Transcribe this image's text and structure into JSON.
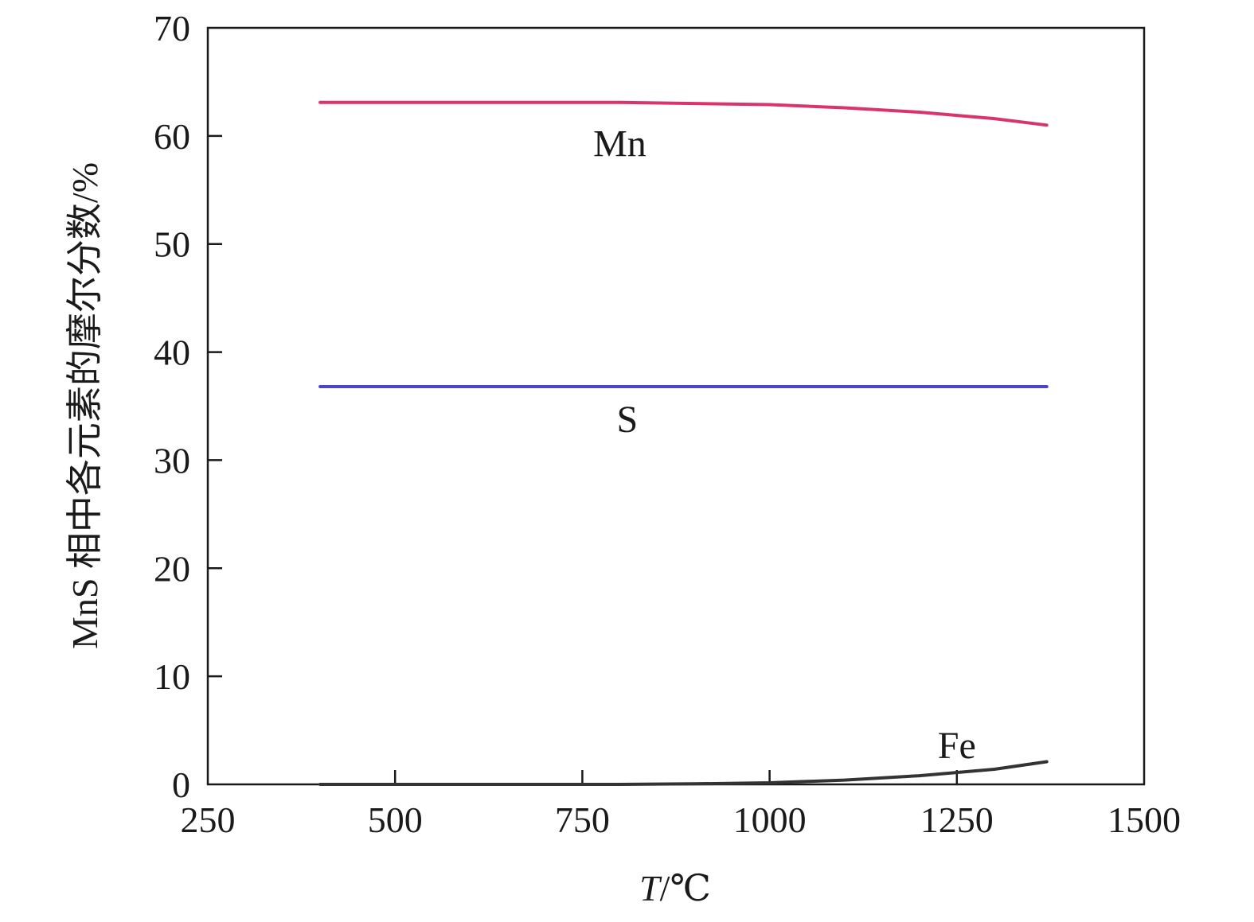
{
  "chart_data": {
    "type": "line",
    "title": "",
    "xlabel": "T/℃",
    "xlabel_var": "T",
    "xlabel_unit": "/℃",
    "ylabel": "MnS 相中各元素的摩尔分数/%",
    "xlim": [
      250,
      1500
    ],
    "ylim": [
      0,
      70
    ],
    "xticks": [
      250,
      500,
      750,
      1000,
      1250,
      1500
    ],
    "yticks": [
      0,
      10,
      20,
      30,
      40,
      50,
      60,
      70
    ],
    "grid": false,
    "legend": "none",
    "series": [
      {
        "name": "Mn",
        "color": "#d9356b",
        "x": [
          400,
          500,
          600,
          700,
          800,
          900,
          1000,
          1100,
          1200,
          1300,
          1370
        ],
        "y": [
          63.1,
          63.1,
          63.1,
          63.1,
          63.1,
          63.0,
          62.9,
          62.6,
          62.2,
          61.6,
          61.0
        ]
      },
      {
        "name": "S",
        "color": "#4b45c8",
        "x": [
          400,
          500,
          600,
          700,
          800,
          900,
          1000,
          1100,
          1200,
          1300,
          1370
        ],
        "y": [
          36.8,
          36.8,
          36.8,
          36.8,
          36.8,
          36.8,
          36.8,
          36.8,
          36.8,
          36.8,
          36.8
        ]
      },
      {
        "name": "Fe",
        "color": "#333333",
        "x": [
          400,
          500,
          600,
          700,
          800,
          900,
          1000,
          1100,
          1200,
          1300,
          1370
        ],
        "y": [
          0.0,
          0.0,
          0.0,
          0.0,
          0.0,
          0.05,
          0.15,
          0.4,
          0.8,
          1.4,
          2.1
        ]
      }
    ],
    "annotations": [
      {
        "text": "Mn",
        "x": 800,
        "y": 59.3
      },
      {
        "text": "S",
        "x": 810,
        "y": 33.8
      },
      {
        "text": "Fe",
        "x": 1250,
        "y": 3.6
      }
    ]
  }
}
